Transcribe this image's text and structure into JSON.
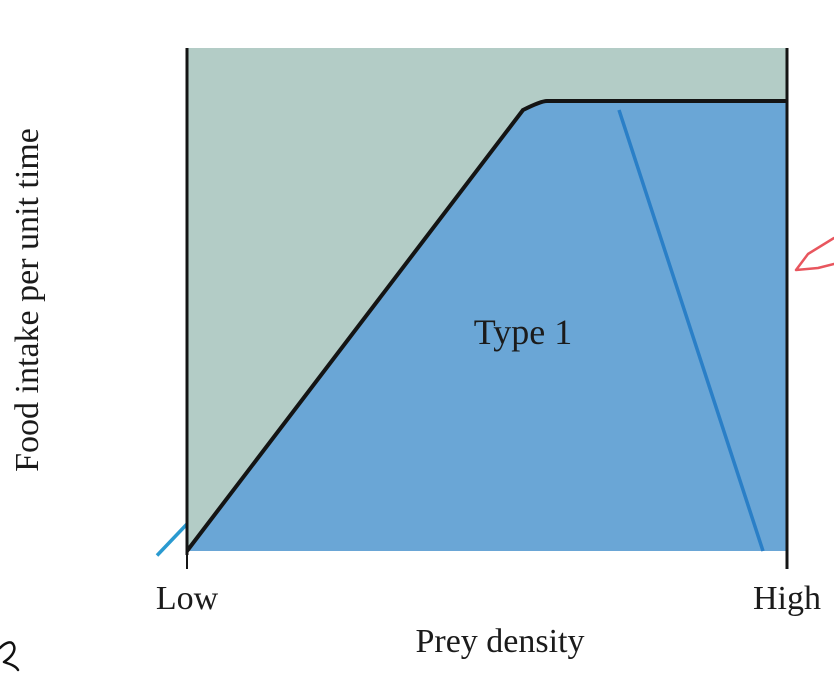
{
  "chart_data": {
    "type": "area",
    "title": "",
    "xlabel": "Prey density",
    "ylabel": "Food intake per unit time",
    "x_tick_labels": [
      "Low",
      "High"
    ],
    "x_range": [
      0,
      1
    ],
    "y_range": [
      0,
      1
    ],
    "grid": false,
    "legend": "none",
    "series": [
      {
        "points": [
          [
            0,
            0
          ],
          [
            0.56,
            0.98
          ],
          [
            0.6,
            1.0
          ],
          [
            1.0,
            1.0
          ]
        ]
      }
    ],
    "annotation": {
      "text": "Type 1",
      "x": 0.56,
      "y": 0.46
    },
    "overlay_lines": [
      {
        "points": [
          [
            0.72,
            0.98
          ],
          [
            0.96,
            0.0
          ]
        ],
        "color": "#2a7fc7"
      },
      {
        "points": [
          [
            -0.05,
            -0.01
          ],
          [
            0.0,
            0.06
          ]
        ],
        "color": "#2a9ad0"
      }
    ],
    "colors": {
      "background_fill": "#b3ccc6",
      "area_fill": "#6aa6d6",
      "curve": "#141414",
      "frame": "#141414",
      "pen_red": "#e8565e",
      "pen_black": "#111111"
    }
  }
}
